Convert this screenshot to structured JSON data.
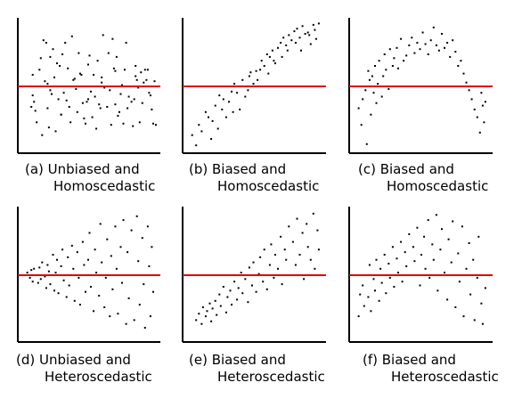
{
  "figure": {
    "background": "#ffffff",
    "axis_color": "#000000",
    "point_color": "#000000",
    "reference_line_color": "#dd0000"
  },
  "chart_data": [
    {
      "type": "scatter",
      "caption": [
        "(a) Unbiased and",
        "Homoscedastic"
      ],
      "xlim": [
        0,
        100
      ],
      "ylim": [
        0,
        100
      ],
      "grid": false,
      "reference_line_y": 50,
      "x": [
        8,
        9,
        9,
        10,
        11,
        12,
        13,
        14,
        15,
        16,
        17,
        18,
        19,
        20,
        21,
        22,
        22,
        23,
        24,
        25,
        26,
        27,
        28,
        29,
        30,
        31,
        32,
        33,
        34,
        35,
        36,
        37,
        38,
        39,
        40,
        41,
        42,
        43,
        44,
        45,
        46,
        47,
        48,
        49,
        50,
        51,
        52,
        53,
        54,
        55,
        56,
        57,
        58,
        59,
        60,
        61,
        62,
        63,
        64,
        65,
        66,
        67,
        68,
        69,
        70,
        71,
        72,
        73,
        74,
        75,
        76,
        77,
        78,
        79,
        80,
        81,
        82,
        83,
        84,
        85,
        86,
        87,
        88,
        89,
        90,
        91,
        92,
        93,
        94,
        95,
        96,
        97,
        98,
        99,
        100,
        85,
        20,
        30,
        40,
        50,
        60,
        70
      ],
      "y": [
        34,
        43,
        59,
        38,
        31,
        22,
        50,
        63,
        72,
        12,
        86,
        54,
        84,
        33,
        18,
        73,
        47,
        44,
        79,
        57,
        15,
        68,
        40,
        66,
        28,
        75,
        45,
        84,
        39,
        64,
        34,
        22,
        89,
        55,
        50,
        48,
        30,
        76,
        60,
        59,
        37,
        25,
        21,
        38,
        67,
        74,
        46,
        26,
        59,
        42,
        17,
        70,
        36,
        33,
        57,
        90,
        49,
        50,
        34,
        76,
        47,
        20,
        87,
        64,
        62,
        73,
        27,
        30,
        44,
        51,
        21,
        63,
        84,
        33,
        42,
        50,
        38,
        19,
        40,
        58,
        55,
        49,
        22,
        61,
        37,
        53,
        63,
        55,
        63,
        45,
        43,
        32,
        21,
        54,
        20,
        66,
        52,
        28,
        56,
        40,
        53,
        36
      ]
    },
    {
      "type": "scatter",
      "caption": [
        "(b) Biased and",
        "Homoscedastic"
      ],
      "xlim": [
        0,
        100
      ],
      "ylim": [
        0,
        100
      ],
      "grid": false,
      "reference_line_y": 50,
      "x": [
        5,
        8,
        10,
        12,
        15,
        17,
        19,
        20,
        22,
        24,
        25,
        27,
        28,
        30,
        32,
        34,
        35,
        36,
        38,
        40,
        41,
        42,
        44,
        46,
        47,
        48,
        50,
        52,
        53,
        55,
        56,
        58,
        60,
        61,
        62,
        64,
        65,
        66,
        68,
        70,
        71,
        72,
        74,
        75,
        76,
        78,
        80,
        81,
        82,
        84,
        85,
        86,
        88,
        90,
        91,
        92,
        94,
        95,
        96,
        98
      ],
      "y": [
        12,
        4,
        20,
        15,
        30,
        26,
        9,
        23,
        35,
        17,
        43,
        32,
        40,
        26,
        38,
        46,
        30,
        52,
        45,
        32,
        50,
        55,
        42,
        47,
        58,
        61,
        52,
        62,
        55,
        63,
        70,
        66,
        75,
        60,
        73,
        78,
        70,
        68,
        80,
        84,
        73,
        88,
        82,
        78,
        90,
        86,
        93,
        84,
        95,
        88,
        78,
        97,
        91,
        92,
        90,
        83,
        98,
        94,
        87,
        99
      ]
    },
    {
      "type": "scatter",
      "caption": [
        "(c) Biased and",
        "Homoscedastic"
      ],
      "xlim": [
        0,
        100
      ],
      "ylim": [
        0,
        100
      ],
      "grid": false,
      "reference_line_y": 50,
      "x": [
        5,
        7,
        8,
        10,
        11,
        12,
        13,
        14,
        15,
        16,
        17,
        18,
        19,
        20,
        22,
        23,
        24,
        25,
        27,
        28,
        30,
        31,
        33,
        34,
        36,
        38,
        40,
        42,
        44,
        46,
        48,
        50,
        52,
        54,
        56,
        58,
        60,
        62,
        64,
        66,
        68,
        70,
        72,
        74,
        76,
        78,
        80,
        82,
        84,
        86,
        88,
        90,
        92,
        94,
        95,
        96,
        97,
        98
      ],
      "y": [
        33,
        20,
        40,
        47,
        5,
        62,
        55,
        28,
        58,
        45,
        66,
        37,
        52,
        70,
        42,
        58,
        75,
        63,
        48,
        79,
        66,
        72,
        80,
        64,
        87,
        70,
        74,
        82,
        88,
        76,
        84,
        79,
        92,
        83,
        75,
        86,
        96,
        82,
        78,
        91,
        80,
        84,
        73,
        86,
        77,
        66,
        70,
        60,
        53,
        47,
        40,
        32,
        26,
        14,
        45,
        35,
        22,
        38
      ]
    },
    {
      "type": "scatter",
      "caption": [
        "(d) Unbiased and",
        "Heteroscedastic"
      ],
      "xlim": [
        0,
        100
      ],
      "ylim": [
        0,
        100
      ],
      "grid": false,
      "reference_line_y": 50,
      "x": [
        5,
        7,
        8,
        9,
        10,
        12,
        13,
        14,
        15,
        16,
        18,
        19,
        20,
        21,
        22,
        24,
        25,
        26,
        27,
        28,
        30,
        31,
        32,
        34,
        35,
        36,
        38,
        39,
        40,
        42,
        43,
        44,
        46,
        47,
        48,
        50,
        51,
        52,
        54,
        55,
        56,
        58,
        59,
        60,
        62,
        63,
        64,
        66,
        67,
        68,
        70,
        71,
        72,
        74,
        75,
        76,
        78,
        79,
        80,
        82,
        83,
        84,
        86,
        87,
        88,
        90,
        91,
        92,
        94,
        95,
        96,
        97,
        98
      ],
      "y": [
        52,
        48,
        54,
        45,
        55,
        50,
        44,
        56,
        47,
        60,
        49,
        40,
        58,
        53,
        43,
        66,
        38,
        52,
        62,
        36,
        57,
        70,
        46,
        33,
        64,
        42,
        73,
        55,
        30,
        68,
        48,
        27,
        76,
        58,
        37,
        62,
        83,
        41,
        22,
        70,
        52,
        34,
        90,
        60,
        25,
        48,
        78,
        18,
        65,
        39,
        88,
        55,
        20,
        72,
        44,
        93,
        12,
        68,
        32,
        85,
        50,
        15,
        96,
        61,
        27,
        79,
        43,
        9,
        88,
        57,
        18,
        72,
        37
      ]
    },
    {
      "type": "scatter",
      "caption": [
        "(e) Biased and",
        "Heteroscedastic"
      ],
      "xlim": [
        0,
        100
      ],
      "ylim": [
        0,
        100
      ],
      "grid": false,
      "reference_line_y": 50,
      "x": [
        8,
        10,
        12,
        13,
        15,
        16,
        18,
        19,
        20,
        22,
        23,
        25,
        26,
        28,
        30,
        31,
        33,
        34,
        36,
        38,
        39,
        41,
        42,
        44,
        46,
        47,
        49,
        50,
        52,
        54,
        55,
        57,
        58,
        60,
        62,
        63,
        65,
        66,
        68,
        70,
        71,
        73,
        74,
        76,
        78,
        79,
        81,
        82,
        84,
        86,
        87,
        89,
        90,
        92,
        94,
        95,
        97,
        98
      ],
      "y": [
        15,
        20,
        12,
        25,
        18,
        22,
        28,
        14,
        24,
        30,
        19,
        35,
        26,
        41,
        21,
        33,
        38,
        27,
        45,
        31,
        40,
        52,
        36,
        47,
        29,
        56,
        42,
        60,
        37,
        51,
        64,
        45,
        70,
        39,
        58,
        74,
        48,
        66,
        55,
        80,
        43,
        70,
        62,
        88,
        50,
        76,
        58,
        94,
        66,
        83,
        47,
        90,
        72,
        62,
        98,
        55,
        85,
        70
      ]
    },
    {
      "type": "scatter",
      "caption": [
        "(f) Biased and",
        "Heteroscedastic"
      ],
      "xlim": [
        0,
        100
      ],
      "ylim": [
        0,
        100
      ],
      "grid": false,
      "reference_line_y": 50,
      "x": [
        5,
        6,
        8,
        9,
        10,
        12,
        13,
        14,
        16,
        17,
        18,
        20,
        21,
        22,
        24,
        25,
        27,
        28,
        30,
        31,
        33,
        34,
        36,
        37,
        39,
        40,
        42,
        43,
        45,
        46,
        48,
        50,
        51,
        53,
        54,
        56,
        57,
        59,
        60,
        62,
        63,
        65,
        66,
        68,
        70,
        71,
        73,
        74,
        76,
        78,
        79,
        81,
        82,
        84,
        86,
        87,
        89,
        90,
        92,
        93,
        95,
        96,
        98
      ],
      "y": [
        18,
        35,
        42,
        26,
        50,
        33,
        58,
        22,
        47,
        38,
        62,
        30,
        55,
        44,
        66,
        36,
        59,
        48,
        72,
        41,
        63,
        52,
        76,
        45,
        68,
        57,
        82,
        50,
        72,
        61,
        87,
        42,
        66,
        80,
        55,
        93,
        48,
        74,
        62,
        97,
        38,
        70,
        86,
        52,
        31,
        78,
        60,
        92,
        25,
        67,
        45,
        88,
        18,
        55,
        75,
        35,
        62,
        15,
        48,
        80,
        28,
        12,
        40
      ]
    }
  ]
}
